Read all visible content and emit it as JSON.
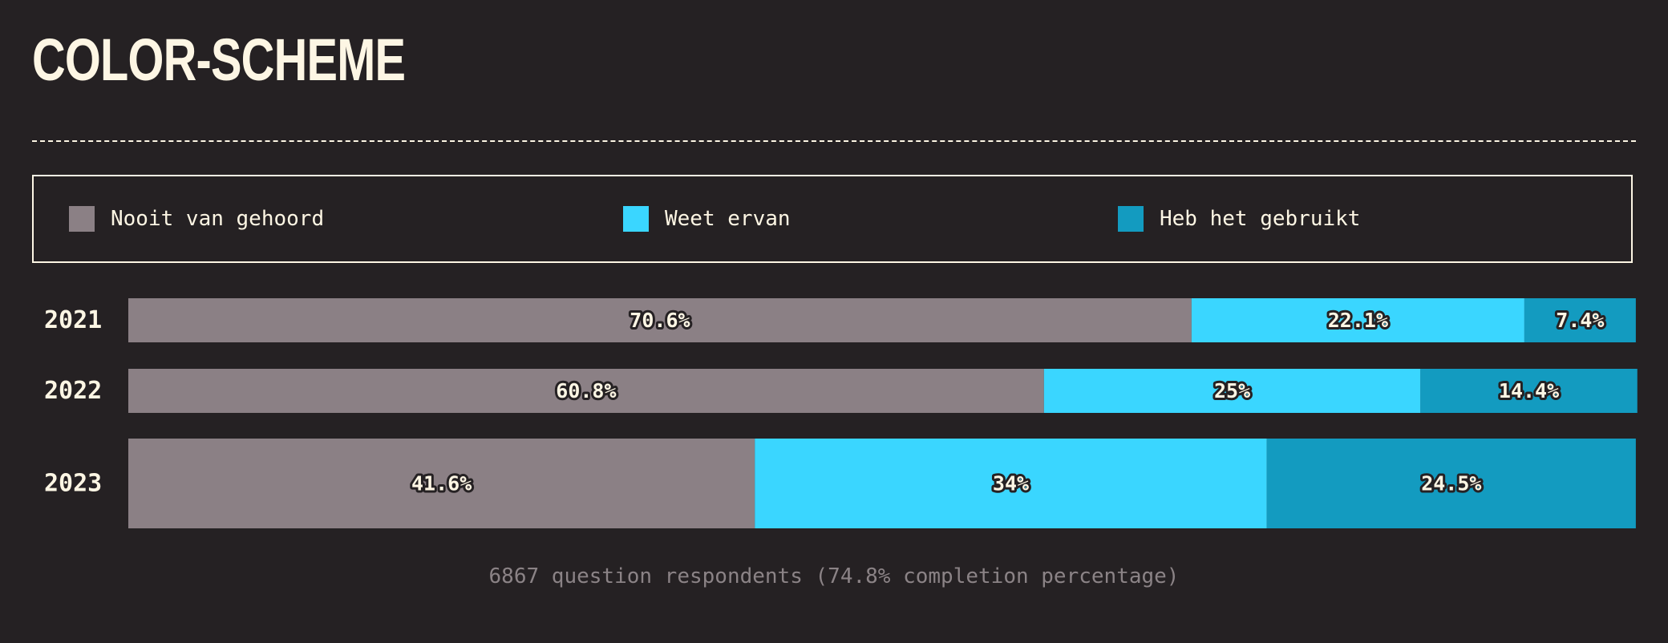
{
  "title": "COLOR-SCHEME",
  "legend": [
    {
      "label": "Nooit van gehoord",
      "color": "#8b8085"
    },
    {
      "label": "Weet ervan",
      "color": "#3ad6ff"
    },
    {
      "label": "Heb het gebruikt",
      "color": "#139bc0"
    }
  ],
  "chart_data": {
    "type": "bar",
    "orientation": "horizontal",
    "stacked": true,
    "normalized": true,
    "categories": [
      "2021",
      "2022",
      "2023"
    ],
    "series": [
      {
        "name": "Nooit van gehoord",
        "values": [
          70.6,
          60.8,
          41.6
        ],
        "labels": [
          "70.6%",
          "60.8%",
          "41.6%"
        ],
        "color": "#8b8085"
      },
      {
        "name": "Weet ervan",
        "values": [
          22.1,
          25,
          34
        ],
        "labels": [
          "22.1%",
          "25%",
          "34%"
        ],
        "color": "#3ad6ff"
      },
      {
        "name": "Heb het gebruikt",
        "values": [
          7.4,
          14.4,
          24.5
        ],
        "labels": [
          "7.4%",
          "14.4%",
          "24.5%"
        ],
        "color": "#139bc0"
      }
    ],
    "xlim": [
      0,
      100
    ],
    "grid": false,
    "legend_position": "top"
  },
  "footer": "6867 question respondents (74.8% completion percentage)"
}
